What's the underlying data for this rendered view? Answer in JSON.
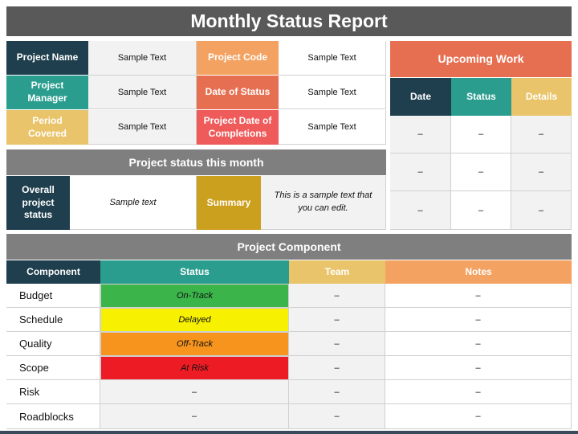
{
  "title": "Monthly Status Report",
  "colors": {
    "dark_teal": "#1f3f4e",
    "teal": "#2a9d8f",
    "yellow": "#e9c46a",
    "orange": "#f4a261",
    "coral": "#e76f51",
    "red": "#ef5b5b",
    "gold": "#cca01f",
    "gray_bar": "#7f7f7f",
    "title_bar": "#595959",
    "on_track": "#3bb54a",
    "delayed": "#f7f000",
    "off_track": "#f7941d",
    "at_risk": "#ed1c24"
  },
  "project_info": {
    "project_name_label": "Project Name",
    "project_name_value": "Sample Text",
    "project_code_label": "Project Code",
    "project_code_value": "Sample Text",
    "project_manager_label": "Project Manager",
    "project_manager_value": "Sample Text",
    "date_of_status_label": "Date of Status",
    "date_of_status_value": "Sample Text",
    "period_covered_label": "Period Covered",
    "period_covered_value": "Sample Text",
    "project_completion_label": "Project Date of Completions",
    "project_completion_value": "Sample Text"
  },
  "upcoming_work": {
    "title": "Upcoming Work",
    "columns": [
      "Date",
      "Status",
      "Details"
    ],
    "rows": [
      [
        "–",
        "–",
        "–"
      ],
      [
        "–",
        "–",
        "–"
      ],
      [
        "–",
        "–",
        "–"
      ]
    ]
  },
  "status_month": {
    "title": "Project status this month",
    "overall_label": "Overall project status",
    "overall_value": "Sample text",
    "summary_label": "Summary",
    "summary_value": "This is a sample text that you can edit."
  },
  "component_table": {
    "title": "Project Component",
    "columns": [
      "Component",
      "Status",
      "Team",
      "Notes"
    ],
    "rows": [
      {
        "component": "Budget",
        "status": "On-Track",
        "team": "–",
        "notes": "–"
      },
      {
        "component": "Schedule",
        "status": "Delayed",
        "team": "–",
        "notes": "–"
      },
      {
        "component": "Quality",
        "status": "Off-Track",
        "team": "–",
        "notes": "–"
      },
      {
        "component": "Scope",
        "status": "At Risk",
        "team": "–",
        "notes": "–"
      },
      {
        "component": "Risk",
        "status": "–",
        "team": "–",
        "notes": "–"
      },
      {
        "component": "Roadblocks",
        "status": "–",
        "team": "–",
        "notes": "–"
      }
    ]
  }
}
